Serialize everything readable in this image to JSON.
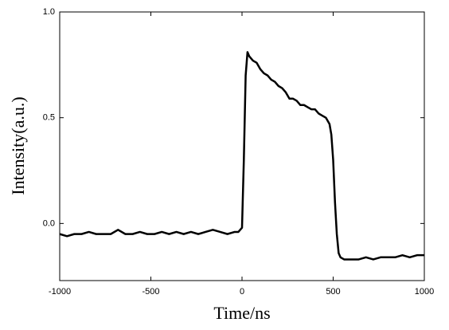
{
  "chart_data": {
    "type": "line",
    "x_label": "Time/ns",
    "y_label": "Intensity(a.u.)",
    "x": [
      -1000,
      -960,
      -920,
      -880,
      -840,
      -800,
      -760,
      -720,
      -680,
      -640,
      -600,
      -560,
      -520,
      -480,
      -440,
      -400,
      -360,
      -320,
      -280,
      -240,
      -200,
      -160,
      -120,
      -80,
      -40,
      -20,
      -10,
      0,
      10,
      20,
      30,
      40,
      60,
      80,
      100,
      120,
      140,
      160,
      180,
      200,
      220,
      240,
      260,
      280,
      300,
      320,
      340,
      360,
      380,
      400,
      420,
      440,
      460,
      480,
      490,
      500,
      510,
      520,
      530,
      540,
      560,
      600,
      640,
      680,
      720,
      760,
      800,
      840,
      880,
      920,
      960,
      1000
    ],
    "series": [
      {
        "color": "#000000",
        "values": [
          -0.05,
          -0.06,
          -0.05,
          -0.05,
          -0.04,
          -0.05,
          -0.05,
          -0.05,
          -0.03,
          -0.05,
          -0.05,
          -0.04,
          -0.05,
          -0.05,
          -0.04,
          -0.05,
          -0.04,
          -0.05,
          -0.04,
          -0.05,
          -0.04,
          -0.03,
          -0.04,
          -0.05,
          -0.04,
          -0.04,
          -0.03,
          -0.02,
          0.3,
          0.7,
          0.81,
          0.79,
          0.77,
          0.76,
          0.73,
          0.71,
          0.7,
          0.68,
          0.67,
          0.65,
          0.64,
          0.62,
          0.59,
          0.59,
          0.58,
          0.56,
          0.56,
          0.55,
          0.54,
          0.54,
          0.52,
          0.51,
          0.5,
          0.47,
          0.42,
          0.3,
          0.1,
          -0.05,
          -0.14,
          -0.16,
          -0.17,
          -0.17,
          -0.17,
          -0.16,
          -0.17,
          -0.16,
          -0.16,
          -0.16,
          -0.15,
          -0.16,
          -0.15,
          -0.15
        ]
      }
    ],
    "xlim": [
      -1000,
      1000
    ],
    "xticks": [
      -1000,
      -500,
      0,
      500,
      1000
    ],
    "ylim": [
      -0.27,
      1.0
    ],
    "yticks": [
      {
        "value": 0,
        "label": "0.0"
      },
      0.5,
      {
        "value": 1,
        "label": "1.0"
      }
    ],
    "grid": false
  }
}
